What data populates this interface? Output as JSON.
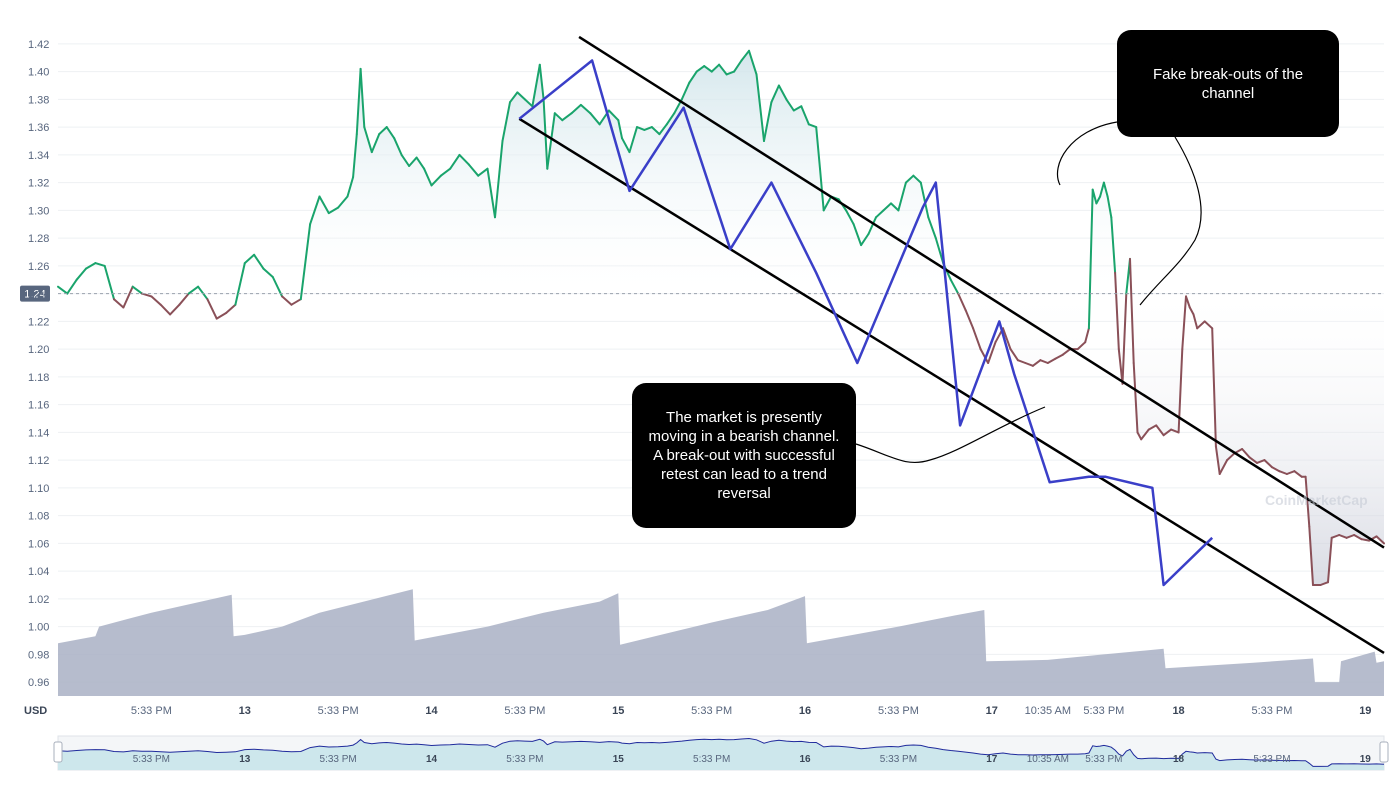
{
  "colors": {
    "up_line": "#1aa46c",
    "down_line": "#8a5058",
    "area_fill": "#cfe4ea",
    "volume_fill": "#a9b0c4",
    "trend_line": "#3a3fc8",
    "channel_line": "#000000",
    "navigator_line": "#1f2a9c",
    "navigator_fill": "#cde7ec"
  },
  "chart_data": {
    "type": "line",
    "ylim": [
      0.95,
      1.43
    ],
    "y_ticks": [
      "1.42",
      "1.40",
      "1.38",
      "1.36",
      "1.34",
      "1.32",
      "1.30",
      "1.28",
      "1.26",
      "1.24",
      "1.22",
      "1.20",
      "1.18",
      "1.16",
      "1.14",
      "1.12",
      "1.10",
      "1.08",
      "1.06",
      "1.04",
      "1.02",
      "1.00",
      "0.98",
      "0.96"
    ],
    "current_price_label": "1.24",
    "baseline": 1.24,
    "x_axis_unit": "USD",
    "x_ticks": [
      {
        "label": "5:33 PM",
        "day": false,
        "x": 0.5
      },
      {
        "label": "13",
        "day": true,
        "x": 1
      },
      {
        "label": "5:33 PM",
        "day": false,
        "x": 1.5
      },
      {
        "label": "14",
        "day": true,
        "x": 2
      },
      {
        "label": "5:33 PM",
        "day": false,
        "x": 2.5
      },
      {
        "label": "15",
        "day": true,
        "x": 3
      },
      {
        "label": "5:33 PM",
        "day": false,
        "x": 3.5
      },
      {
        "label": "16",
        "day": true,
        "x": 4
      },
      {
        "label": "5:33 PM",
        "day": false,
        "x": 4.5
      },
      {
        "label": "17",
        "day": true,
        "x": 5
      },
      {
        "label": "10:35 AM",
        "day": false,
        "x": 5.3
      },
      {
        "label": "5:33 PM",
        "day": false,
        "x": 5.6
      },
      {
        "label": "18",
        "day": true,
        "x": 6
      },
      {
        "label": "5:33 PM",
        "day": false,
        "x": 6.5
      },
      {
        "label": "19",
        "day": true,
        "x": 7
      }
    ],
    "price_series": [
      [
        0.0,
        1.245
      ],
      [
        0.05,
        1.24
      ],
      [
        0.1,
        1.25
      ],
      [
        0.15,
        1.258
      ],
      [
        0.2,
        1.262
      ],
      [
        0.25,
        1.26
      ],
      [
        0.3,
        1.236
      ],
      [
        0.35,
        1.23
      ],
      [
        0.4,
        1.245
      ],
      [
        0.45,
        1.24
      ],
      [
        0.5,
        1.238
      ],
      [
        0.55,
        1.232
      ],
      [
        0.6,
        1.225
      ],
      [
        0.65,
        1.232
      ],
      [
        0.7,
        1.24
      ],
      [
        0.75,
        1.245
      ],
      [
        0.8,
        1.236
      ],
      [
        0.85,
        1.222
      ],
      [
        0.9,
        1.226
      ],
      [
        0.95,
        1.232
      ],
      [
        1.0,
        1.262
      ],
      [
        1.05,
        1.268
      ],
      [
        1.1,
        1.258
      ],
      [
        1.15,
        1.252
      ],
      [
        1.2,
        1.238
      ],
      [
        1.25,
        1.232
      ],
      [
        1.3,
        1.236
      ],
      [
        1.35,
        1.29
      ],
      [
        1.4,
        1.31
      ],
      [
        1.45,
        1.298
      ],
      [
        1.5,
        1.302
      ],
      [
        1.55,
        1.31
      ],
      [
        1.58,
        1.324
      ],
      [
        1.6,
        1.355
      ],
      [
        1.62,
        1.402
      ],
      [
        1.64,
        1.36
      ],
      [
        1.68,
        1.342
      ],
      [
        1.72,
        1.355
      ],
      [
        1.76,
        1.36
      ],
      [
        1.8,
        1.352
      ],
      [
        1.84,
        1.34
      ],
      [
        1.88,
        1.332
      ],
      [
        1.92,
        1.338
      ],
      [
        1.96,
        1.33
      ],
      [
        2.0,
        1.318
      ],
      [
        2.05,
        1.325
      ],
      [
        2.1,
        1.33
      ],
      [
        2.15,
        1.34
      ],
      [
        2.2,
        1.333
      ],
      [
        2.25,
        1.325
      ],
      [
        2.3,
        1.33
      ],
      [
        2.34,
        1.295
      ],
      [
        2.38,
        1.35
      ],
      [
        2.42,
        1.378
      ],
      [
        2.46,
        1.385
      ],
      [
        2.5,
        1.38
      ],
      [
        2.54,
        1.375
      ],
      [
        2.58,
        1.405
      ],
      [
        2.6,
        1.38
      ],
      [
        2.62,
        1.33
      ],
      [
        2.66,
        1.37
      ],
      [
        2.7,
        1.365
      ],
      [
        2.75,
        1.37
      ],
      [
        2.8,
        1.376
      ],
      [
        2.85,
        1.37
      ],
      [
        2.9,
        1.362
      ],
      [
        2.95,
        1.372
      ],
      [
        3.0,
        1.365
      ],
      [
        3.02,
        1.352
      ],
      [
        3.06,
        1.342
      ],
      [
        3.1,
        1.36
      ],
      [
        3.14,
        1.358
      ],
      [
        3.18,
        1.36
      ],
      [
        3.22,
        1.355
      ],
      [
        3.26,
        1.362
      ],
      [
        3.3,
        1.37
      ],
      [
        3.34,
        1.38
      ],
      [
        3.38,
        1.392
      ],
      [
        3.42,
        1.4
      ],
      [
        3.46,
        1.404
      ],
      [
        3.5,
        1.4
      ],
      [
        3.54,
        1.405
      ],
      [
        3.58,
        1.398
      ],
      [
        3.62,
        1.4
      ],
      [
        3.66,
        1.408
      ],
      [
        3.7,
        1.415
      ],
      [
        3.74,
        1.398
      ],
      [
        3.78,
        1.35
      ],
      [
        3.82,
        1.378
      ],
      [
        3.86,
        1.39
      ],
      [
        3.9,
        1.38
      ],
      [
        3.94,
        1.372
      ],
      [
        3.98,
        1.375
      ],
      [
        4.02,
        1.362
      ],
      [
        4.06,
        1.36
      ],
      [
        4.08,
        1.33
      ],
      [
        4.1,
        1.3
      ],
      [
        4.14,
        1.31
      ],
      [
        4.18,
        1.308
      ],
      [
        4.22,
        1.3
      ],
      [
        4.26,
        1.29
      ],
      [
        4.3,
        1.275
      ],
      [
        4.34,
        1.283
      ],
      [
        4.38,
        1.295
      ],
      [
        4.42,
        1.3
      ],
      [
        4.46,
        1.305
      ],
      [
        4.5,
        1.3
      ],
      [
        4.54,
        1.32
      ],
      [
        4.58,
        1.325
      ],
      [
        4.62,
        1.32
      ],
      [
        4.66,
        1.295
      ],
      [
        4.7,
        1.28
      ],
      [
        4.74,
        1.262
      ],
      [
        4.78,
        1.25
      ],
      [
        4.82,
        1.24
      ],
      [
        4.86,
        1.228
      ],
      [
        4.9,
        1.215
      ],
      [
        4.94,
        1.2
      ],
      [
        4.98,
        1.19
      ],
      [
        5.02,
        1.205
      ],
      [
        5.06,
        1.215
      ],
      [
        5.1,
        1.2
      ],
      [
        5.14,
        1.192
      ],
      [
        5.18,
        1.19
      ],
      [
        5.22,
        1.188
      ],
      [
        5.26,
        1.192
      ],
      [
        5.3,
        1.19
      ],
      [
        5.34,
        1.193
      ],
      [
        5.38,
        1.196
      ],
      [
        5.42,
        1.2
      ],
      [
        5.46,
        1.2
      ],
      [
        5.5,
        1.205
      ],
      [
        5.52,
        1.215
      ],
      [
        5.54,
        1.315
      ],
      [
        5.56,
        1.305
      ],
      [
        5.58,
        1.31
      ],
      [
        5.6,
        1.32
      ],
      [
        5.62,
        1.31
      ],
      [
        5.64,
        1.295
      ],
      [
        5.66,
        1.255
      ],
      [
        5.68,
        1.2
      ],
      [
        5.7,
        1.175
      ],
      [
        5.72,
        1.24
      ],
      [
        5.74,
        1.265
      ],
      [
        5.76,
        1.19
      ],
      [
        5.78,
        1.14
      ],
      [
        5.8,
        1.135
      ],
      [
        5.84,
        1.142
      ],
      [
        5.88,
        1.145
      ],
      [
        5.92,
        1.138
      ],
      [
        5.96,
        1.142
      ],
      [
        6.0,
        1.14
      ],
      [
        6.02,
        1.2
      ],
      [
        6.04,
        1.238
      ],
      [
        6.06,
        1.23
      ],
      [
        6.08,
        1.225
      ],
      [
        6.1,
        1.215
      ],
      [
        6.14,
        1.22
      ],
      [
        6.18,
        1.215
      ],
      [
        6.2,
        1.13
      ],
      [
        6.22,
        1.11
      ],
      [
        6.26,
        1.12
      ],
      [
        6.3,
        1.125
      ],
      [
        6.34,
        1.128
      ],
      [
        6.38,
        1.122
      ],
      [
        6.42,
        1.118
      ],
      [
        6.46,
        1.12
      ],
      [
        6.5,
        1.115
      ],
      [
        6.54,
        1.112
      ],
      [
        6.58,
        1.11
      ],
      [
        6.62,
        1.112
      ],
      [
        6.66,
        1.108
      ],
      [
        6.68,
        1.108
      ],
      [
        6.7,
        1.072
      ],
      [
        6.72,
        1.03
      ],
      [
        6.76,
        1.03
      ],
      [
        6.8,
        1.032
      ],
      [
        6.82,
        1.064
      ],
      [
        6.86,
        1.066
      ],
      [
        6.9,
        1.064
      ],
      [
        6.94,
        1.066
      ],
      [
        6.98,
        1.063
      ],
      [
        7.02,
        1.062
      ],
      [
        7.06,
        1.065
      ],
      [
        7.1,
        1.06
      ]
    ],
    "volume_bars": [
      [
        0.0,
        0.988
      ],
      [
        0.2,
        0.993
      ],
      [
        0.22,
        1.0
      ],
      [
        0.5,
        1.01
      ],
      [
        0.93,
        1.023
      ],
      [
        0.94,
        0.993
      ],
      [
        1.0,
        0.994
      ],
      [
        1.2,
        1.0
      ],
      [
        1.4,
        1.01
      ],
      [
        1.9,
        1.027
      ],
      [
        1.91,
        0.99
      ],
      [
        2.3,
        1.0
      ],
      [
        2.6,
        1.01
      ],
      [
        2.9,
        1.018
      ],
      [
        3.0,
        1.024
      ],
      [
        3.01,
        0.987
      ],
      [
        3.5,
        1.003
      ],
      [
        3.8,
        1.012
      ],
      [
        4.0,
        1.022
      ],
      [
        4.01,
        0.988
      ],
      [
        4.5,
        1.0
      ],
      [
        4.8,
        1.008
      ],
      [
        4.96,
        1.012
      ],
      [
        4.97,
        0.975
      ],
      [
        5.3,
        0.976
      ],
      [
        5.6,
        0.98
      ],
      [
        5.92,
        0.984
      ],
      [
        5.93,
        0.97
      ],
      [
        6.4,
        0.974
      ],
      [
        6.72,
        0.977
      ],
      [
        6.73,
        0.96
      ],
      [
        6.86,
        0.96
      ],
      [
        6.87,
        0.975
      ],
      [
        7.05,
        0.982
      ],
      [
        7.06,
        0.974
      ],
      [
        7.1,
        0.975
      ]
    ],
    "channel_upper": [
      [
        2.79,
        1.425
      ],
      [
        7.1,
        1.057
      ]
    ],
    "channel_lower": [
      [
        2.47,
        1.366
      ],
      [
        7.1,
        0.981
      ]
    ],
    "trend_path": [
      [
        2.47,
        1.366
      ],
      [
        2.86,
        1.408
      ],
      [
        3.06,
        1.314
      ],
      [
        3.35,
        1.374
      ],
      [
        3.6,
        1.272
      ],
      [
        3.82,
        1.32
      ],
      [
        4.06,
        1.255
      ],
      [
        4.28,
        1.19
      ],
      [
        4.63,
        1.302
      ],
      [
        4.7,
        1.32
      ],
      [
        4.83,
        1.145
      ],
      [
        5.04,
        1.22
      ],
      [
        5.12,
        1.182
      ],
      [
        5.31,
        1.104
      ],
      [
        5.52,
        1.108
      ],
      [
        5.61,
        1.108
      ],
      [
        5.86,
        1.1
      ],
      [
        5.92,
        1.03
      ],
      [
        6.18,
        1.064
      ]
    ],
    "annotations": [
      "The market is presently moving in a bearish channel. A break-out with successful retest can lead to a trend reversal",
      "Fake break-outs of the channel"
    ],
    "watermark": "CoinMarketCap"
  },
  "callouts": {
    "channel": "The market is presently moving in a bearish channel. A break-out with successful retest can lead to a trend reversal",
    "fake": "Fake break-outs of the channel"
  }
}
